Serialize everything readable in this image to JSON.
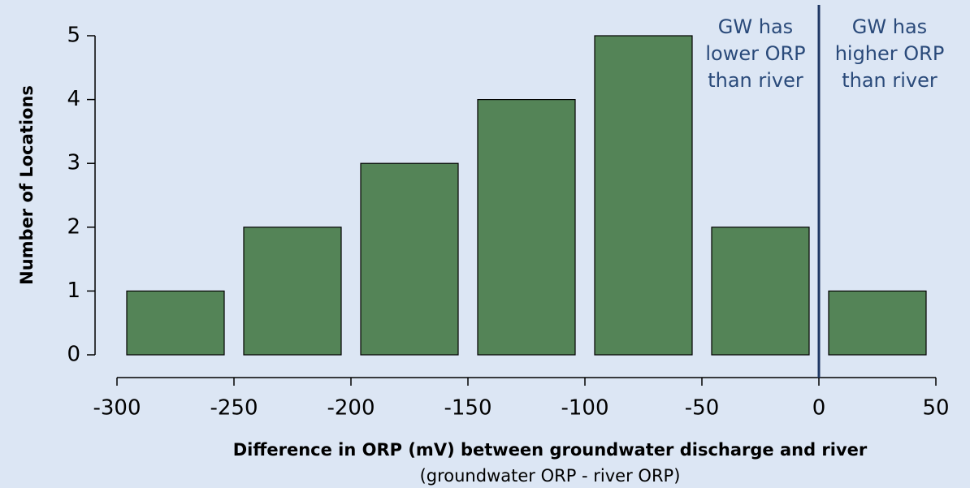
{
  "chart_data": {
    "type": "histogram",
    "bins": [
      -300,
      -250,
      -200,
      -150,
      -100,
      -50,
      0,
      50
    ],
    "counts": [
      1,
      2,
      3,
      4,
      5,
      2,
      1
    ],
    "color": "#548457",
    "xlim": [
      -300,
      50
    ],
    "xticks": [
      -300,
      -250,
      -200,
      -150,
      -100,
      -50,
      0,
      50
    ],
    "ylim": [
      0,
      5
    ],
    "yticks": [
      0,
      1,
      2,
      3,
      4,
      5
    ],
    "xlabel": "Difference in ORP (mV) between groundwater discharge and river",
    "xlabel_sub": "(groundwater ORP - river ORP)",
    "ylabel": "Number of Locations",
    "vline": 0,
    "vline_color": "#1f3864",
    "annotations": [
      {
        "lines": [
          "GW has",
          "lower ORP",
          "than river"
        ]
      },
      {
        "lines": [
          "GW has",
          "higher ORP",
          "than river"
        ]
      }
    ]
  }
}
